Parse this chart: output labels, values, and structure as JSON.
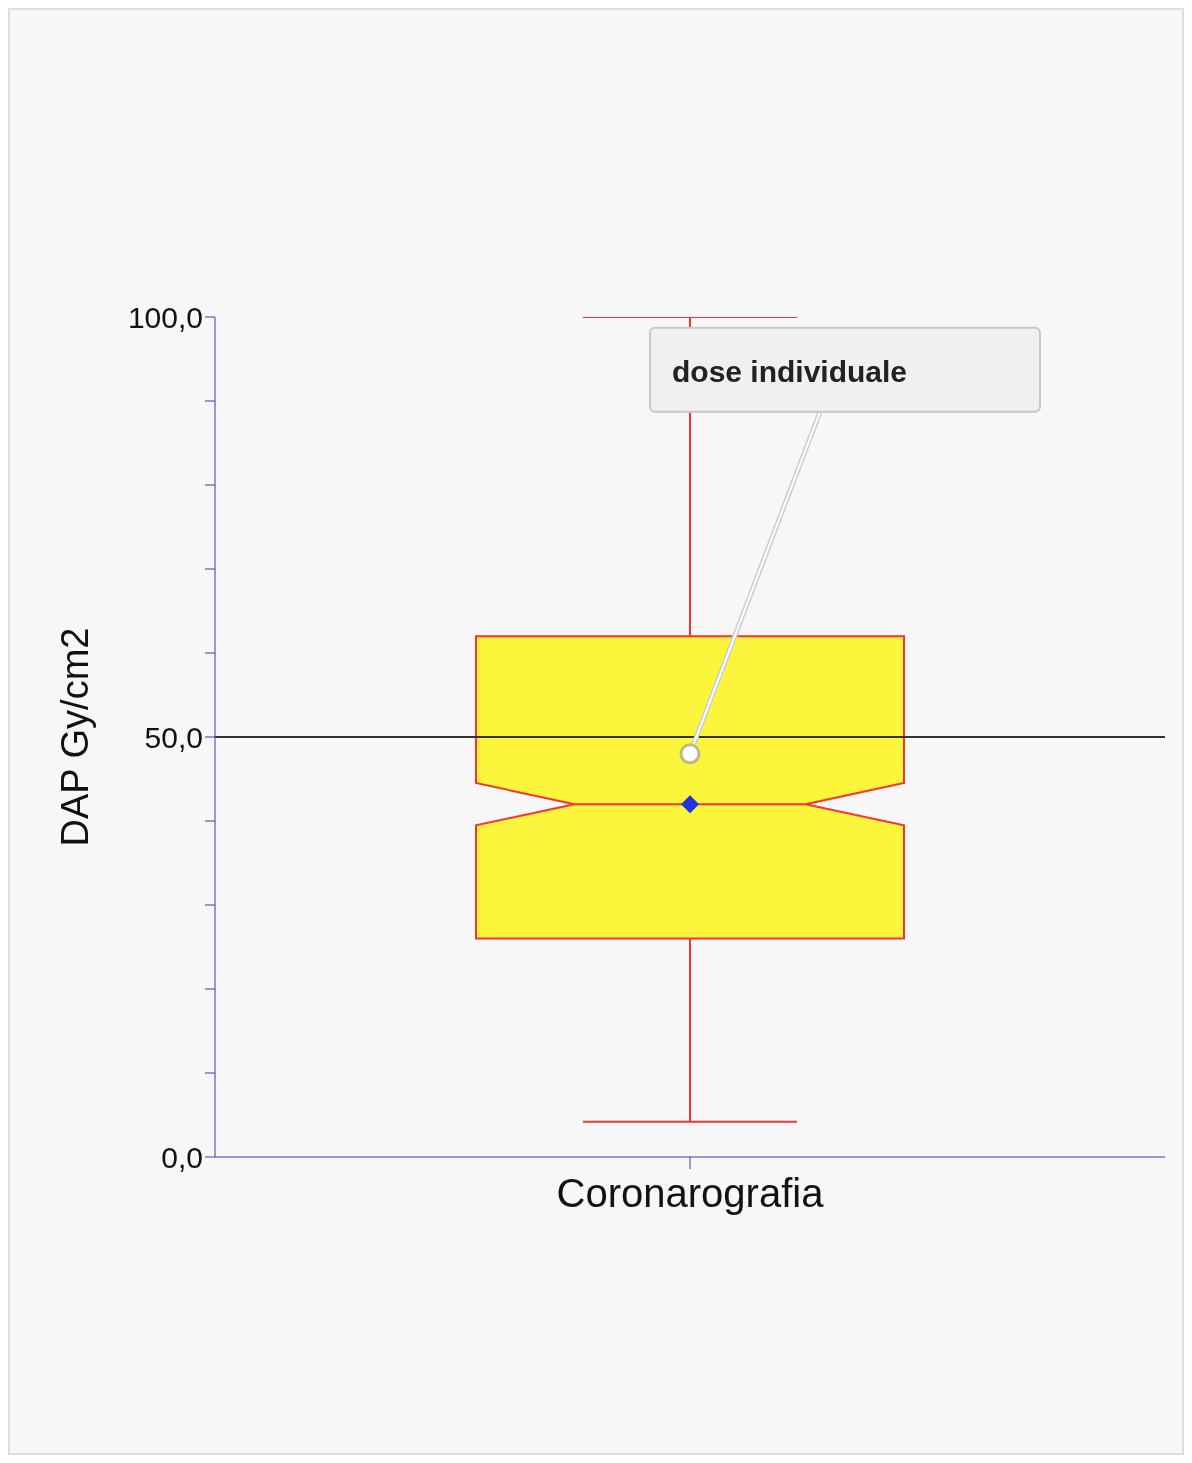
{
  "chart_data": {
    "type": "box",
    "categories": [
      "Coronarografia"
    ],
    "ylabel": "DAP Gy/cm2",
    "boxes": [
      {
        "low": 4.2,
        "q1": 26,
        "median": 42,
        "q3": 62,
        "high": 100,
        "mean": 42
      }
    ],
    "color": "#fbf53c",
    "ylim": [
      0,
      100
    ],
    "yticks": [
      {
        "value": 0,
        "label": "0,0"
      },
      {
        "value": 10,
        "label": null
      },
      {
        "value": 20,
        "label": null
      },
      {
        "value": 30,
        "label": null
      },
      {
        "value": 40,
        "label": null
      },
      {
        "value": 50,
        "label": "50,0"
      },
      {
        "value": 60,
        "label": null
      },
      {
        "value": 70,
        "label": null
      },
      {
        "value": 80,
        "label": null
      },
      {
        "value": 90,
        "label": null
      },
      {
        "value": 100,
        "label": "100,0"
      }
    ],
    "ref_lines": [
      {
        "axis": "y",
        "value": 50,
        "color": "#333333"
      }
    ],
    "series": [
      {
        "type": "scatter",
        "x": [
          "Coronarografia"
        ],
        "values": [
          48
        ],
        "color": "#ffffff"
      }
    ],
    "annotations": [
      "dose individuale"
    ],
    "grid": false,
    "legend": false
  }
}
